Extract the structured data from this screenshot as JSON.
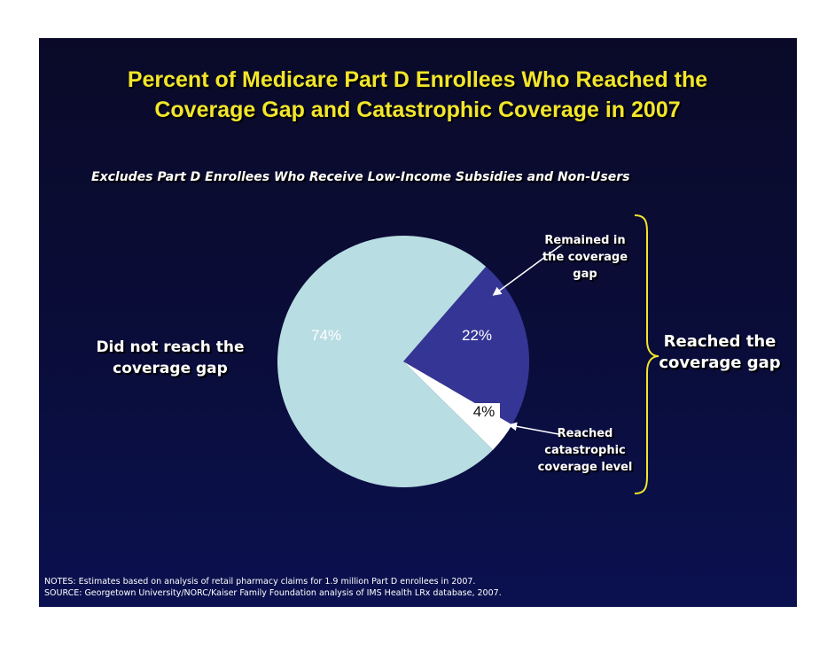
{
  "title": {
    "line1": "Percent of Medicare Part D Enrollees Who Reached the",
    "line2": "Coverage Gap and Catastrophic Coverage in 2007"
  },
  "subtitle": "Excludes Part D Enrollees Who Receive Low-Income Subsidies and Non-Users",
  "chart_data": {
    "type": "pie",
    "categories": [
      "Did not reach the coverage gap",
      "Remained in the coverage gap",
      "Reached catastrophic coverage level"
    ],
    "values": [
      74,
      22,
      4
    ],
    "value_labels": [
      "74%",
      "22%",
      "4%"
    ],
    "colors": [
      "#b8dde2",
      "#353595",
      "#ffffff"
    ]
  },
  "labels": {
    "did_not_reach": "Did not reach the coverage gap",
    "remained": "Remained in the coverage gap",
    "catastrophic": "Reached catastrophic coverage level",
    "reached_gap": "Reached the coverage gap"
  },
  "colors": {
    "background": "#0a0d3a",
    "title": "#f2e62c",
    "brace": "#f2e62c",
    "text": "#ffffff"
  },
  "notes": {
    "line1": "NOTES: Estimates based on analysis of retail pharmacy claims for 1.9 million Part D enrollees in 2007.",
    "line2": "SOURCE: Georgetown University/NORC/Kaiser Family Foundation analysis of IMS Health LRx database, 2007."
  }
}
